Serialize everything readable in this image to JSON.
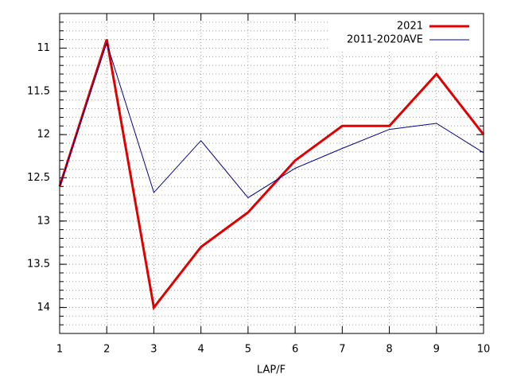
{
  "chart_data": {
    "type": "line",
    "xlabel": "LAP/F",
    "x": [
      1,
      2,
      3,
      4,
      5,
      6,
      7,
      8,
      9,
      10
    ],
    "series": [
      {
        "name": "2021",
        "color": "#e00000",
        "width": 3,
        "values": [
          12.6,
          10.9,
          14.0,
          13.3,
          12.9,
          12.3,
          11.9,
          11.9,
          11.3,
          12.0
        ]
      },
      {
        "name": "2011-2020AVE",
        "color": "#00008b",
        "width": 1,
        "values": [
          12.6,
          10.94,
          12.67,
          12.07,
          12.73,
          12.39,
          12.16,
          11.94,
          11.87,
          12.21
        ]
      }
    ],
    "xlim": [
      1,
      10
    ],
    "xticks": [
      1,
      2,
      3,
      4,
      5,
      6,
      7,
      8,
      9,
      10
    ],
    "ylim": [
      14.3,
      10.6
    ],
    "yticks": [
      11,
      11.5,
      12,
      12.5,
      13,
      13.5,
      14
    ],
    "y_minor_subdivisions": 5,
    "grid": true,
    "legend": "top-right"
  }
}
